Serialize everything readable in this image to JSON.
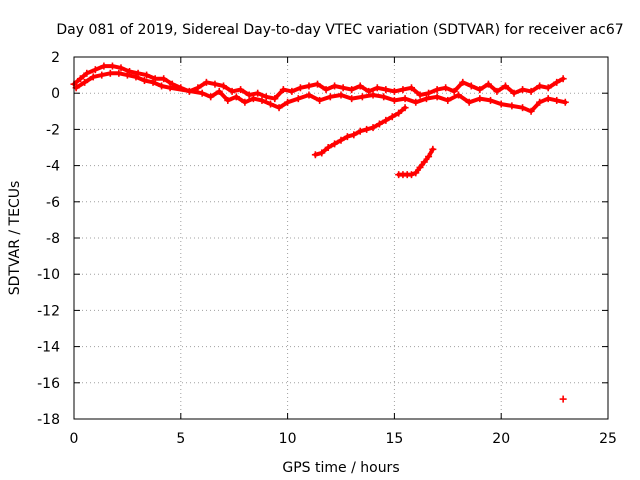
{
  "chart_data": {
    "type": "scatter",
    "title": "Day 081 of 2019, Sidereal Day-to-day VTEC variation (SDTVAR) for receiver ac67",
    "xlabel": "GPS time / hours",
    "ylabel": "SDTVAR / TECUs",
    "xlim": [
      0,
      25
    ],
    "ylim": [
      -18,
      2
    ],
    "xticks": [
      0,
      5,
      10,
      15,
      20,
      25
    ],
    "yticks": [
      2,
      0,
      -2,
      -4,
      -6,
      -8,
      -10,
      -12,
      -14,
      -16,
      -18
    ],
    "grid": true,
    "marker": "+",
    "series_color": "#ff0000",
    "series": [
      {
        "name": "upper band",
        "x": [
          0.0,
          0.3,
          0.6,
          1.0,
          1.4,
          1.8,
          2.2,
          2.6,
          3.0,
          3.4,
          3.8,
          4.2,
          4.6,
          5.0,
          5.4,
          5.8,
          6.2,
          6.6,
          7.0,
          7.4,
          7.8,
          8.2,
          8.6,
          9.0,
          9.4,
          9.8,
          10.2,
          10.6,
          11.0,
          11.4,
          11.8,
          12.2,
          12.6,
          13.0,
          13.4,
          13.8,
          14.2,
          14.6,
          15.0,
          15.4,
          15.8,
          16.2,
          16.6,
          17.0,
          17.4,
          17.8,
          18.2,
          18.6,
          19.0,
          19.4,
          19.8,
          20.2,
          20.6,
          21.0,
          21.4,
          21.8,
          22.2,
          22.6,
          22.9
        ],
        "y": [
          0.5,
          0.8,
          1.1,
          1.3,
          1.5,
          1.5,
          1.4,
          1.2,
          1.1,
          1.0,
          0.8,
          0.8,
          0.5,
          0.3,
          0.1,
          0.3,
          0.6,
          0.5,
          0.4,
          0.1,
          0.2,
          -0.1,
          0.0,
          -0.2,
          -0.3,
          0.2,
          0.1,
          0.3,
          0.4,
          0.5,
          0.2,
          0.4,
          0.3,
          0.2,
          0.4,
          0.1,
          0.3,
          0.2,
          0.1,
          0.2,
          0.3,
          -0.1,
          0.0,
          0.2,
          0.3,
          0.1,
          0.6,
          0.4,
          0.2,
          0.5,
          0.1,
          0.4,
          0.0,
          0.2,
          0.1,
          0.4,
          0.3,
          0.6,
          0.8
        ]
      },
      {
        "name": "lower band",
        "x": [
          0.1,
          0.5,
          0.9,
          1.3,
          1.7,
          2.1,
          2.5,
          2.9,
          3.3,
          3.7,
          4.1,
          4.5,
          6.0,
          6.4,
          6.8,
          7.2,
          7.6,
          8.0,
          8.4,
          8.8,
          9.2,
          9.6,
          10.0,
          10.5,
          11.0,
          11.5,
          12.0,
          12.5,
          13.0,
          13.5,
          14.0,
          14.5,
          15.0,
          15.5,
          16.0,
          16.5,
          17.0,
          17.5,
          18.0,
          18.5,
          19.0,
          19.5,
          20.0,
          20.5,
          21.0,
          21.4,
          21.8,
          22.2,
          22.6,
          23.0
        ],
        "y": [
          0.3,
          0.6,
          0.9,
          1.0,
          1.1,
          1.1,
          1.0,
          0.9,
          0.7,
          0.6,
          0.4,
          0.3,
          0.0,
          -0.2,
          0.1,
          -0.4,
          -0.2,
          -0.5,
          -0.3,
          -0.4,
          -0.6,
          -0.8,
          -0.5,
          -0.3,
          -0.1,
          -0.4,
          -0.2,
          -0.1,
          -0.3,
          -0.2,
          -0.1,
          -0.2,
          -0.4,
          -0.3,
          -0.5,
          -0.3,
          -0.2,
          -0.4,
          -0.1,
          -0.5,
          -0.3,
          -0.4,
          -0.6,
          -0.7,
          -0.8,
          -1.0,
          -0.5,
          -0.3,
          -0.4,
          -0.5
        ]
      },
      {
        "name": "descending arc A",
        "x": [
          11.3,
          11.6,
          11.9,
          12.2,
          12.5,
          12.8,
          13.1,
          13.4,
          13.7,
          14.0,
          14.3,
          14.6,
          14.9,
          15.2,
          15.5
        ],
        "y": [
          -3.4,
          -3.3,
          -3.0,
          -2.8,
          -2.6,
          -2.4,
          -2.3,
          -2.1,
          -2.0,
          -1.9,
          -1.7,
          -1.5,
          -1.3,
          -1.1,
          -0.8
        ]
      },
      {
        "name": "descending arc B",
        "x": [
          15.2,
          15.4,
          15.6,
          15.8,
          16.0,
          16.2,
          16.4,
          16.6,
          16.8
        ],
        "y": [
          -4.5,
          -4.5,
          -4.5,
          -4.5,
          -4.4,
          -4.1,
          -3.8,
          -3.5,
          -3.1
        ]
      },
      {
        "name": "outlier",
        "x": [
          22.9
        ],
        "y": [
          -16.9
        ]
      }
    ]
  }
}
